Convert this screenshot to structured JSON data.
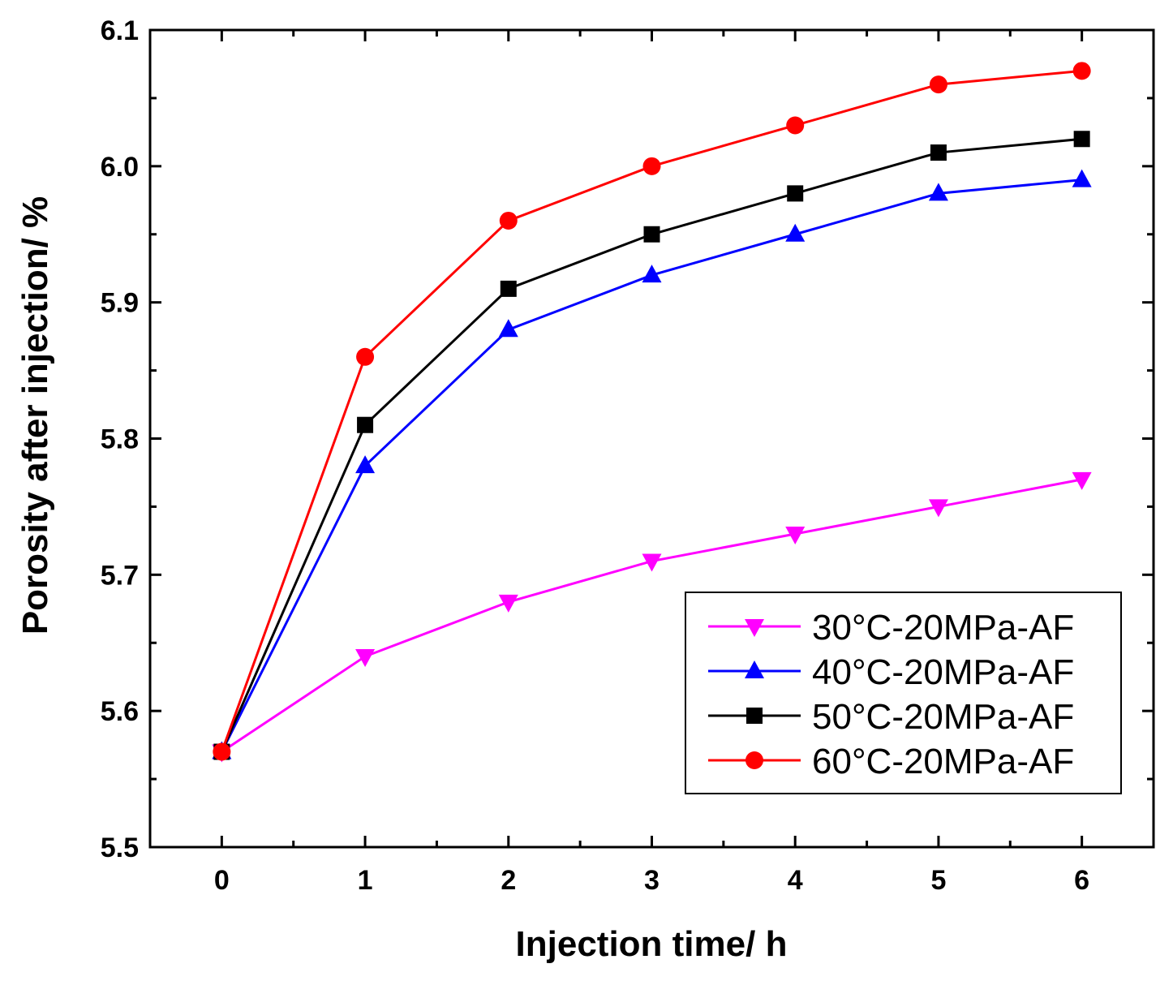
{
  "chart_data": {
    "type": "line",
    "title": "",
    "xlabel": "Injection time/ h",
    "ylabel": "Porosity after injection/ %",
    "xlim": [
      -0.5,
      6.5
    ],
    "ylim": [
      5.5,
      6.1
    ],
    "x_ticks": [
      "0",
      "1",
      "2",
      "3",
      "4",
      "5",
      "6"
    ],
    "y_ticks": [
      "5.5",
      "5.6",
      "5.7",
      "5.8",
      "5.9",
      "6.0",
      "6.1"
    ],
    "grid": false,
    "legend_position": "bottom-right",
    "x": [
      0,
      1,
      2,
      3,
      4,
      5,
      6
    ],
    "series": [
      {
        "name": "30°C-20MPa-AF",
        "color": "#ff00ff",
        "marker": "triangle-down",
        "values": [
          5.57,
          5.64,
          5.68,
          5.71,
          5.73,
          5.75,
          5.77
        ]
      },
      {
        "name": "40°C-20MPa-AF",
        "color": "#0000ff",
        "marker": "triangle-up",
        "values": [
          5.57,
          5.78,
          5.88,
          5.92,
          5.95,
          5.98,
          5.99
        ]
      },
      {
        "name": "50°C-20MPa-AF",
        "color": "#000000",
        "marker": "square",
        "values": [
          5.57,
          5.81,
          5.91,
          5.95,
          5.98,
          6.01,
          6.02
        ]
      },
      {
        "name": "60°C-20MPa-AF",
        "color": "#ff0000",
        "marker": "circle",
        "values": [
          5.57,
          5.86,
          5.96,
          6.0,
          6.03,
          6.06,
          6.07
        ]
      }
    ]
  }
}
